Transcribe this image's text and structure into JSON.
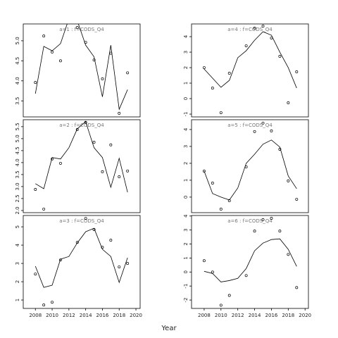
{
  "xlabel": "Year",
  "chart_data": [
    {
      "type": "line",
      "title": "a=1 : f=CODS_Q4",
      "color": "#000000",
      "x": [
        2008,
        2009,
        2010,
        2011,
        2012,
        2013,
        2014,
        2015,
        2016,
        2017,
        2018,
        2019
      ],
      "xlim": [
        2006.55,
        2020.5
      ],
      "ylim": [
        3.1,
        5.42
      ],
      "yticks": [
        3.5,
        {
          "value": 4,
          "label": "4.0"
        },
        4.5,
        {
          "value": 5,
          "label": "5.0"
        }
      ],
      "series": [
        {
          "style": "markers",
          "values": [
            3.96,
            5.12,
            4.72,
            4.5,
            null,
            5.33,
            4.96,
            4.52,
            4.05,
            4.69,
            3.19,
            4.2
          ]
        },
        {
          "style": "line",
          "values": [
            3.68,
            4.86,
            4.75,
            4.93,
            5.55,
            5.5,
            4.89,
            4.6,
            3.6,
            4.89,
            3.29,
            3.78
          ]
        }
      ]
    },
    {
      "type": "line",
      "title": "a=2 : f=CODS_Q4",
      "color": "#000000",
      "x": [
        2008,
        2009,
        2010,
        2011,
        2012,
        2013,
        2014,
        2015,
        2016,
        2017,
        2018,
        2019
      ],
      "xlim": [
        2006.55,
        2020.5
      ],
      "ylim": [
        1.91,
        5.79
      ],
      "yticks": [
        {
          "value": 2,
          "label": "2.0"
        },
        2.5,
        {
          "value": 3,
          "label": "3.0"
        },
        3.5,
        {
          "value": 4,
          "label": "4.0"
        },
        4.5,
        {
          "value": 5,
          "label": "5.0"
        },
        5.5
      ],
      "series": [
        {
          "style": "markers",
          "values": [
            2.88,
            2.06,
            4.15,
            3.97,
            null,
            5.38,
            5.68,
            4.85,
            3.62,
            4.74,
            3.41,
            3.65
          ]
        },
        {
          "style": "line",
          "values": [
            3.12,
            2.91,
            4.21,
            4.15,
            4.62,
            5.41,
            5.71,
            4.62,
            4.21,
            2.97,
            4.18,
            2.76
          ]
        }
      ]
    },
    {
      "type": "line",
      "title": "a=3 : f=CODS_Q4",
      "color": "#000000",
      "x": [
        2008,
        2009,
        2010,
        2011,
        2012,
        2013,
        2014,
        2015,
        2016,
        2017,
        2018,
        2019
      ],
      "xlim": [
        2006.55,
        2020.5
      ],
      "ylim": [
        0.54,
        5.62
      ],
      "yticks": [
        1,
        2,
        3,
        4,
        5
      ],
      "xticks": [
        2008,
        2010,
        2012,
        2014,
        2016,
        2018,
        2020
      ],
      "series": [
        {
          "style": "markers",
          "values": [
            2.42,
            0.73,
            0.88,
            3.19,
            null,
            4.15,
            5.46,
            4.85,
            3.88,
            4.27,
            2.81,
            3.0
          ]
        },
        {
          "style": "line",
          "values": [
            2.85,
            1.69,
            1.81,
            3.23,
            3.38,
            4.12,
            4.73,
            4.92,
            3.77,
            3.38,
            1.96,
            3.31
          ]
        }
      ]
    },
    {
      "type": "line",
      "title": "a=4 : f=CODS_Q4",
      "color": "#000000",
      "x": [
        2008,
        2009,
        2010,
        2011,
        2012,
        2013,
        2014,
        2015,
        2016,
        2017,
        2018,
        2019
      ],
      "xlim": [
        2006.5,
        2020.4
      ],
      "ylim": [
        -1.18,
        4.82
      ],
      "yticks": [
        -1,
        0,
        1,
        2,
        3,
        4
      ],
      "series": [
        {
          "style": "markers",
          "values": [
            2.0,
            0.68,
            -0.91,
            1.64,
            null,
            3.41,
            4.55,
            4.68,
            3.91,
            2.73,
            -0.27,
            1.73
          ]
        },
        {
          "style": "line",
          "values": [
            1.91,
            1.32,
            0.73,
            1.18,
            2.64,
            3.09,
            3.77,
            4.32,
            4.09,
            3.0,
            2.0,
            0.68
          ]
        }
      ]
    },
    {
      "type": "line",
      "title": "a=5 : f=CODS_Q4",
      "color": "#000000",
      "x": [
        2008,
        2009,
        2010,
        2011,
        2012,
        2013,
        2014,
        2015,
        2016,
        2017,
        2018,
        2019
      ],
      "xlim": [
        2006.5,
        2020.4
      ],
      "ylim": [
        -0.92,
        4.58
      ],
      "yticks": [
        0,
        1,
        2,
        3,
        4
      ],
      "series": [
        {
          "style": "markers",
          "values": [
            1.54,
            0.83,
            -0.71,
            -0.21,
            null,
            1.79,
            3.88,
            4.38,
            3.92,
            2.83,
            0.96,
            -0.13
          ]
        },
        {
          "style": "line",
          "values": [
            1.54,
            0.21,
            0.0,
            -0.17,
            0.54,
            2.0,
            2.54,
            3.13,
            3.38,
            2.96,
            1.25,
            0.5
          ]
        }
      ]
    },
    {
      "type": "line",
      "title": "a=6 : f=CODS_Q4",
      "color": "#000000",
      "x": [
        2008,
        2009,
        2010,
        2011,
        2012,
        2013,
        2014,
        2015,
        2016,
        2017,
        2018,
        2019
      ],
      "xlim": [
        2006.5,
        2020.4
      ],
      "ylim": [
        -2.6,
        4.04
      ],
      "yticks": [
        -2,
        -1,
        0,
        1,
        2,
        3,
        4
      ],
      "xticks": [
        2008,
        2010,
        2012,
        2014,
        2016,
        2018,
        2020
      ],
      "series": [
        {
          "style": "markers",
          "values": [
            0.81,
            0.0,
            -2.37,
            -1.67,
            null,
            -0.25,
            2.93,
            3.74,
            3.84,
            2.93,
            1.26,
            -1.11
          ]
        },
        {
          "style": "line",
          "values": [
            0.05,
            -0.1,
            -0.71,
            -0.61,
            -0.45,
            0.25,
            1.52,
            2.07,
            2.32,
            2.37,
            1.62,
            0.4
          ]
        }
      ]
    }
  ]
}
